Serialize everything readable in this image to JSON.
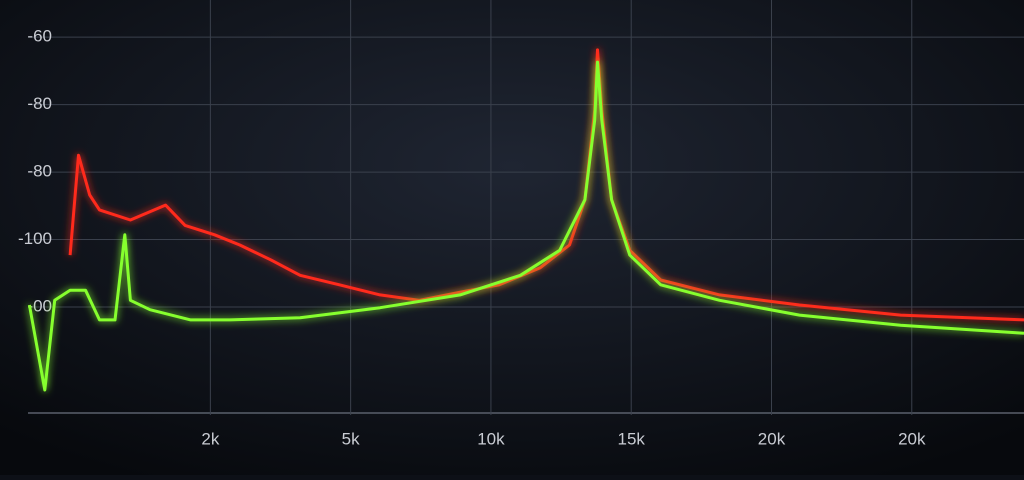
{
  "chart_data": {
    "type": "line",
    "xlim": [
      -0.3,
      6.8
    ],
    "xticks": [
      {
        "value": 1,
        "label": "2k"
      },
      {
        "value": 2,
        "label": "5k"
      },
      {
        "value": 3,
        "label": "10k"
      },
      {
        "value": 4,
        "label": "15k"
      },
      {
        "value": 5,
        "label": "20k"
      },
      {
        "value": 6,
        "label": "20k"
      }
    ],
    "ylim": [
      -1.6,
      4.55
    ],
    "yticks": [
      {
        "value": 4,
        "label": "-60"
      },
      {
        "value": 3,
        "label": "-80"
      },
      {
        "value": 2,
        "label": "-80"
      },
      {
        "value": 1,
        "label": "-100"
      },
      {
        "value": 0,
        "label": "-00"
      }
    ],
    "grid": true,
    "series": [
      {
        "color": "#ff2a1a",
        "x": [
          0,
          0.06,
          0.14,
          0.21,
          0.43,
          0.68,
          0.82,
          1.03,
          1.21,
          1.43,
          1.64,
          1.92,
          2.21,
          2.49,
          2.78,
          3.06,
          3.35,
          3.56,
          3.67,
          3.74,
          3.76,
          3.79,
          3.86,
          3.99,
          4.21,
          4.63,
          5.2,
          5.92,
          6.8
        ],
        "values": [
          0.77,
          2.25,
          1.66,
          1.44,
          1.29,
          1.51,
          1.21,
          1.07,
          0.92,
          0.7,
          0.47,
          0.33,
          0.18,
          0.1,
          0.22,
          0.33,
          0.58,
          0.92,
          1.59,
          2.92,
          3.81,
          2.92,
          1.59,
          0.84,
          0.4,
          0.18,
          0.03,
          -0.12,
          -0.19
        ]
      },
      {
        "color": "#86ff2e",
        "x": [
          -0.29,
          -0.18,
          -0.11,
          0,
          0.11,
          0.21,
          0.32,
          0.39,
          0.43,
          0.57,
          0.86,
          1.14,
          1.64,
          2.21,
          2.78,
          3.21,
          3.49,
          3.67,
          3.74,
          3.76,
          3.79,
          3.86,
          3.99,
          4.21,
          4.63,
          5.2,
          5.92,
          6.8
        ],
        "values": [
          0.03,
          -1.23,
          0.1,
          0.25,
          0.25,
          -0.19,
          -0.19,
          1.07,
          0.1,
          -0.04,
          -0.19,
          -0.19,
          -0.16,
          -0.01,
          0.18,
          0.47,
          0.84,
          1.59,
          2.77,
          3.63,
          2.77,
          1.59,
          0.77,
          0.33,
          0.1,
          -0.12,
          -0.27,
          -0.39
        ]
      }
    ]
  }
}
